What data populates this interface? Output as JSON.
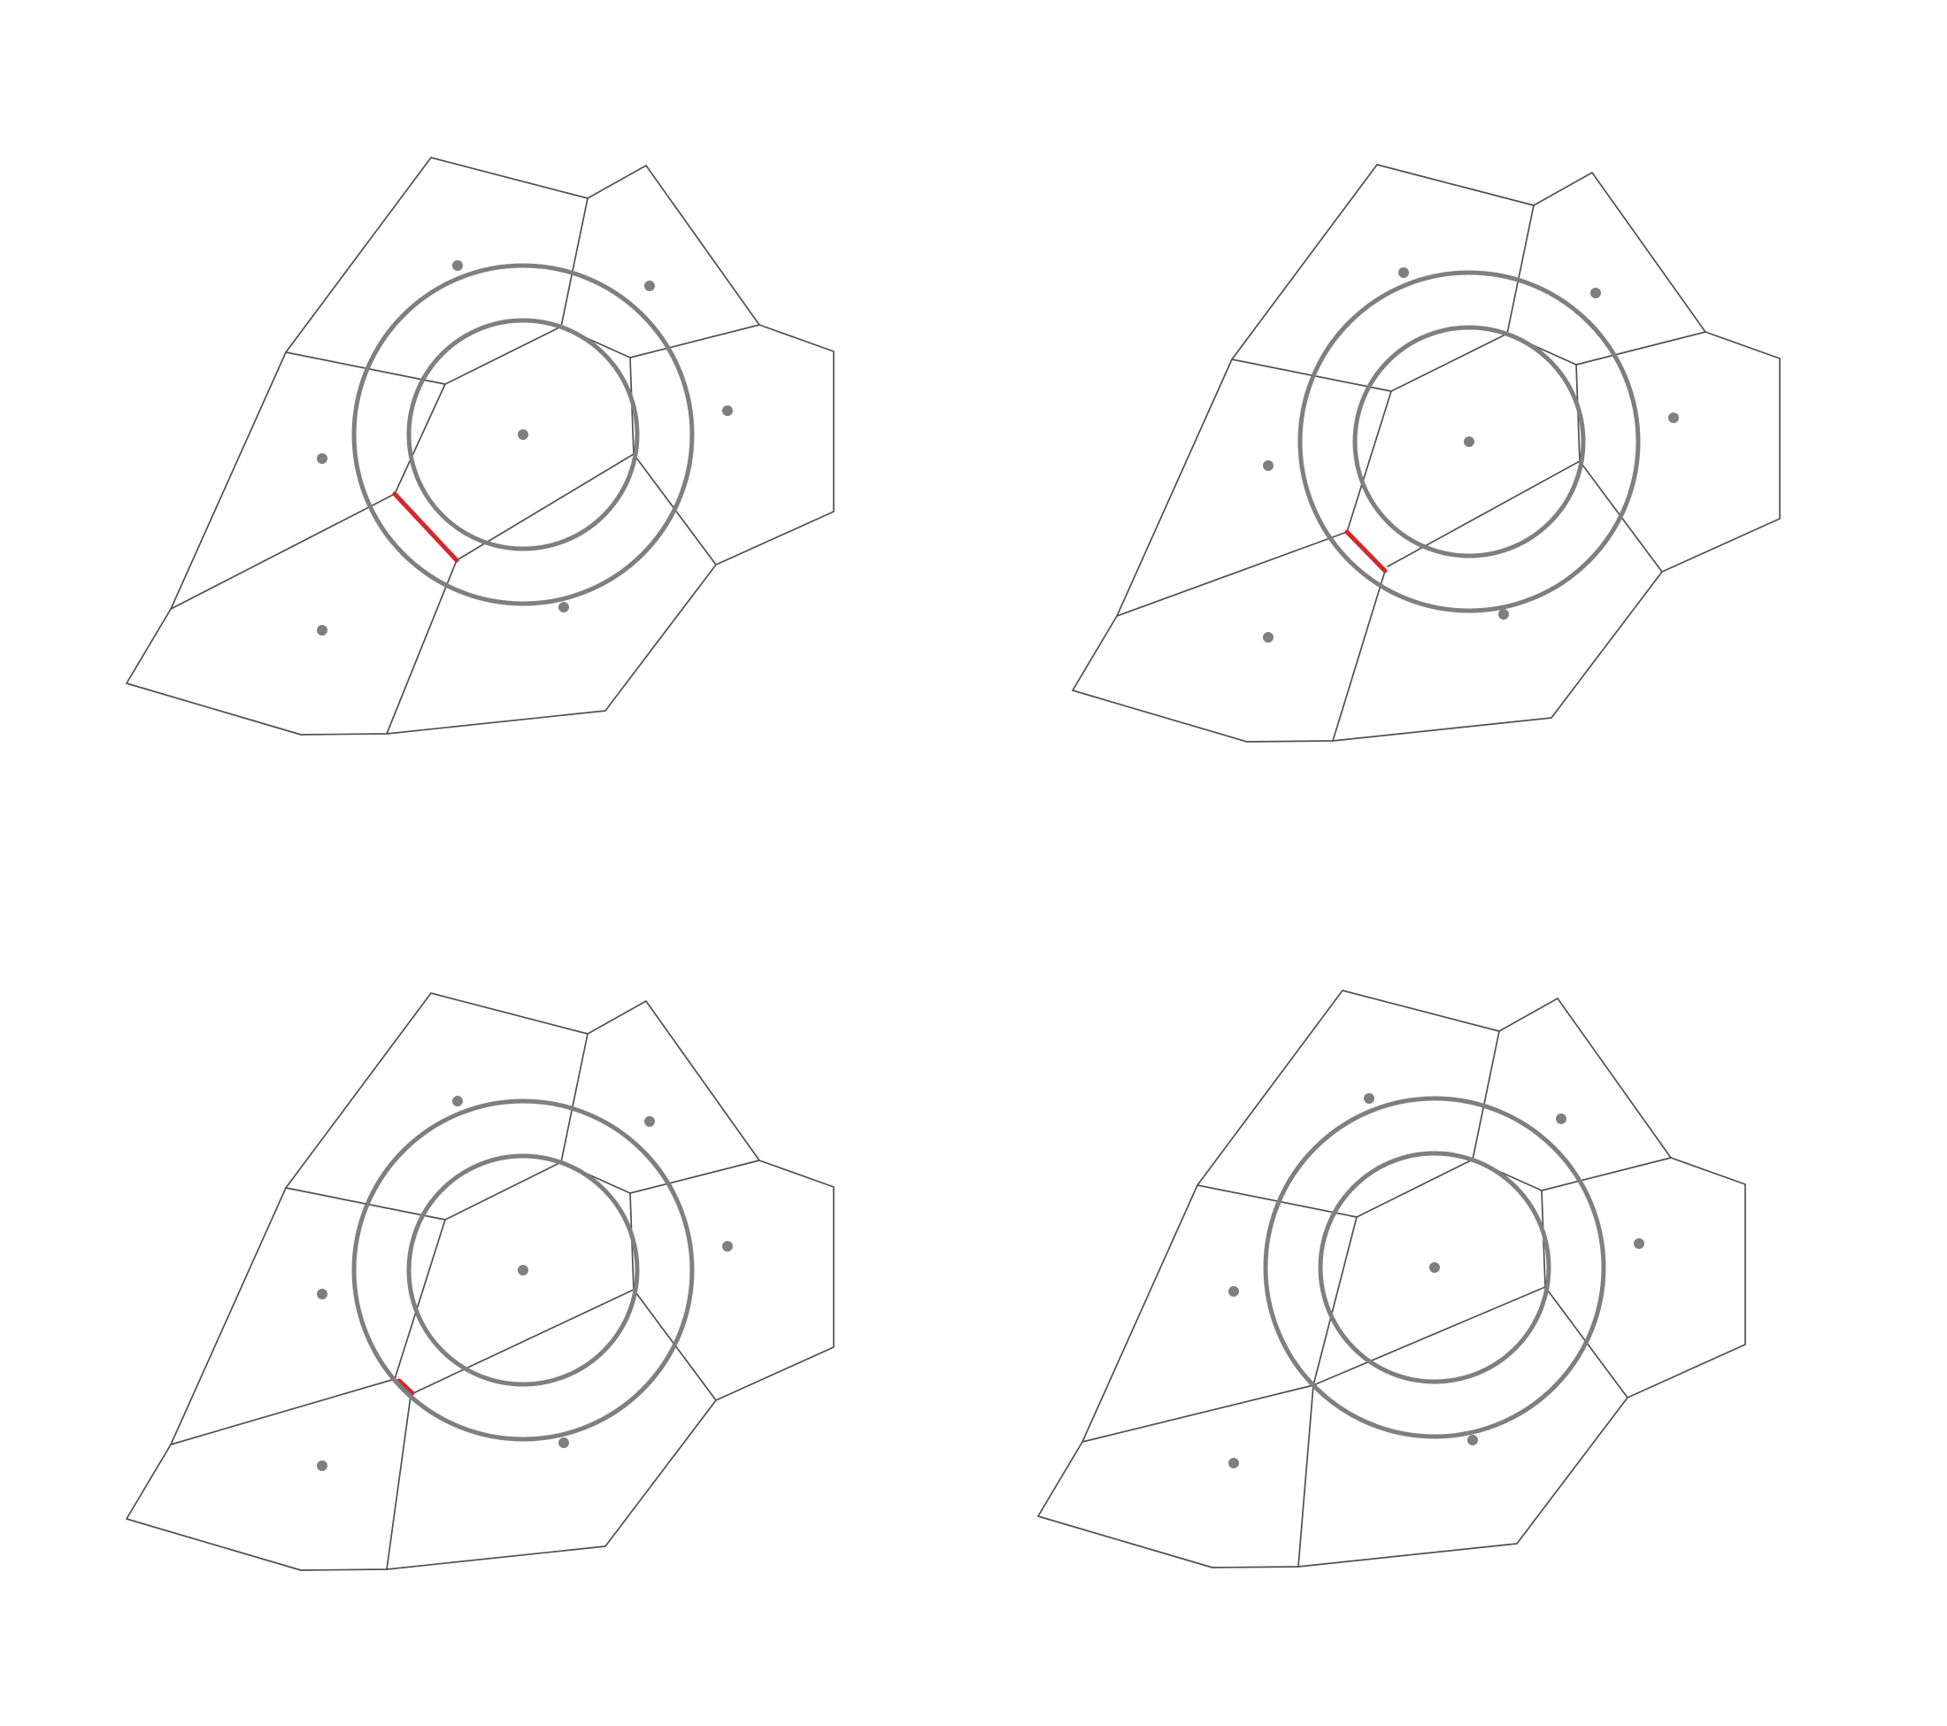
{
  "figure": {
    "panel_count": 4,
    "colors": {
      "background": "#ffffff",
      "cell_edges": "#505050",
      "circles": "#7f7f7f",
      "sites": "#7f7f7f",
      "highlighted_edge": "#d62728"
    },
    "panels": [
      {
        "id": "top-left",
        "sites": 7,
        "circles": 2,
        "highlight_length": "long"
      },
      {
        "id": "top-right",
        "sites": 7,
        "circles": 2,
        "highlight_length": "medium"
      },
      {
        "id": "bottom-left",
        "sites": 7,
        "circles": 2,
        "highlight_length": "short"
      },
      {
        "id": "bottom-right",
        "sites": 7,
        "circles": 2,
        "highlight_length": "point"
      }
    ]
  }
}
